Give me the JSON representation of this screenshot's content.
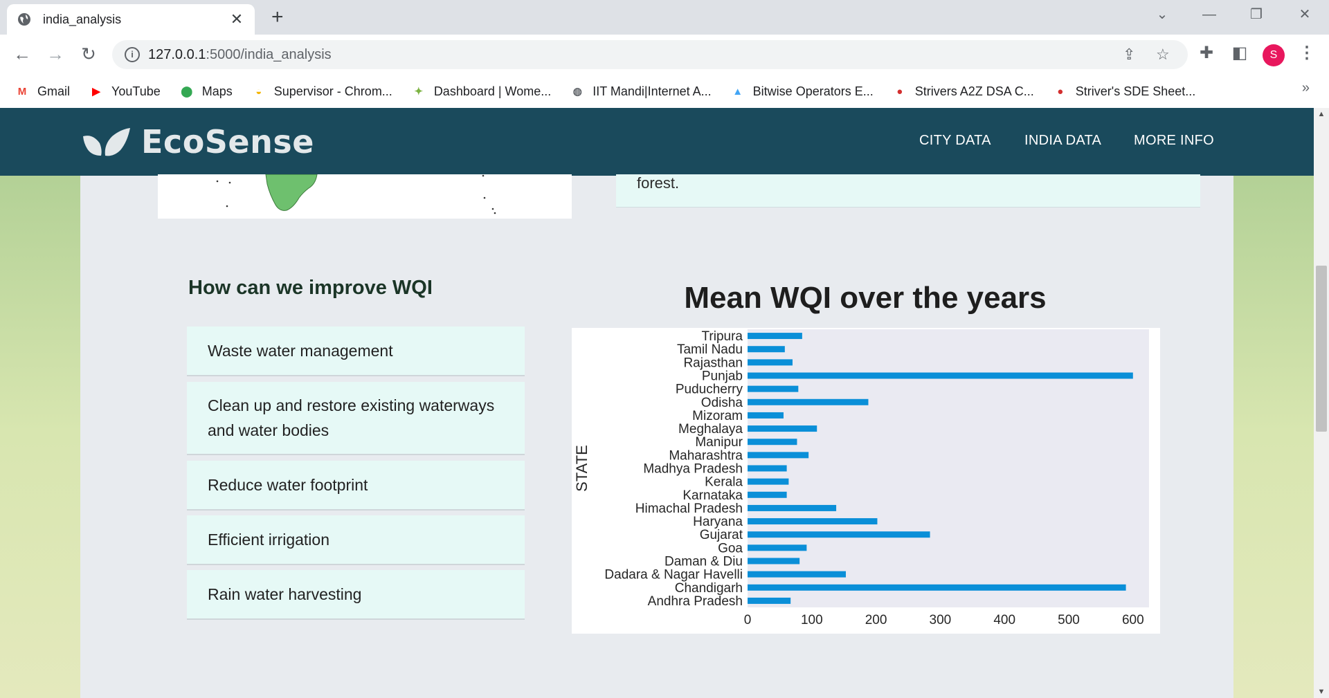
{
  "browser": {
    "tab_title": "india_analysis",
    "tab_close": "✕",
    "new_tab": "+",
    "url_host": "127.0.0.1",
    "url_path": ":5000/india_analysis",
    "profile_initial": "S",
    "bookmarks": [
      {
        "label": "Gmail",
        "icon": "M",
        "color": "#ea4335"
      },
      {
        "label": "YouTube",
        "icon": "▶",
        "color": "#ff0000"
      },
      {
        "label": "Maps",
        "icon": "⬤",
        "color": "#34a853"
      },
      {
        "label": "Supervisor - Chrom...",
        "icon": "◒",
        "color": "#f4b400"
      },
      {
        "label": "Dashboard | Wome...",
        "icon": "✦",
        "color": "#7cb342"
      },
      {
        "label": "IIT Mandi|Internet A...",
        "icon": "◍",
        "color": "#5f6368"
      },
      {
        "label": "Bitwise Operators E...",
        "icon": "▲",
        "color": "#42a5f5"
      },
      {
        "label": "Strivers A2Z DSA C...",
        "icon": "●",
        "color": "#d32f2f"
      },
      {
        "label": "Striver's SDE Sheet...",
        "icon": "●",
        "color": "#d32f2f"
      }
    ],
    "bookmarks_more": "»"
  },
  "site": {
    "brand": "EcoSense",
    "nav": [
      "CITY DATA",
      "INDIA DATA",
      "MORE INFO"
    ],
    "forest_text": "forest."
  },
  "improve": {
    "title": "How can we improve WQI",
    "items": [
      "Waste water management",
      "Clean up and restore existing waterways and water bodies",
      "Reduce water footprint",
      "Efficient irrigation",
      "Rain water harvesting"
    ]
  },
  "chart_data": {
    "type": "bar",
    "orientation": "horizontal",
    "title": "Mean WQI over the years",
    "ylabel": "STATE",
    "xlabel": "",
    "xlim": [
      0,
      625
    ],
    "xticks": [
      0,
      100,
      200,
      300,
      400,
      500,
      600
    ],
    "bar_color": "#0a8fd8",
    "plot_bg": "#eaeaf2",
    "categories": [
      "Tripura",
      "Tamil Nadu",
      "Rajasthan",
      "Punjab",
      "Puducherry",
      "Odisha",
      "Mizoram",
      "Meghalaya",
      "Manipur",
      "Maharashtra",
      "Madhya Pradesh",
      "Kerala",
      "Karnataka",
      "Himachal Pradesh",
      "Haryana",
      "Gujarat",
      "Goa",
      "Daman & Diu",
      "Dadara & Nagar Havelli",
      "Chandigarh",
      "Andhra Pradesh"
    ],
    "values": [
      85,
      58,
      70,
      600,
      79,
      188,
      56,
      108,
      77,
      95,
      61,
      64,
      61,
      138,
      202,
      284,
      92,
      81,
      153,
      589,
      67
    ]
  }
}
